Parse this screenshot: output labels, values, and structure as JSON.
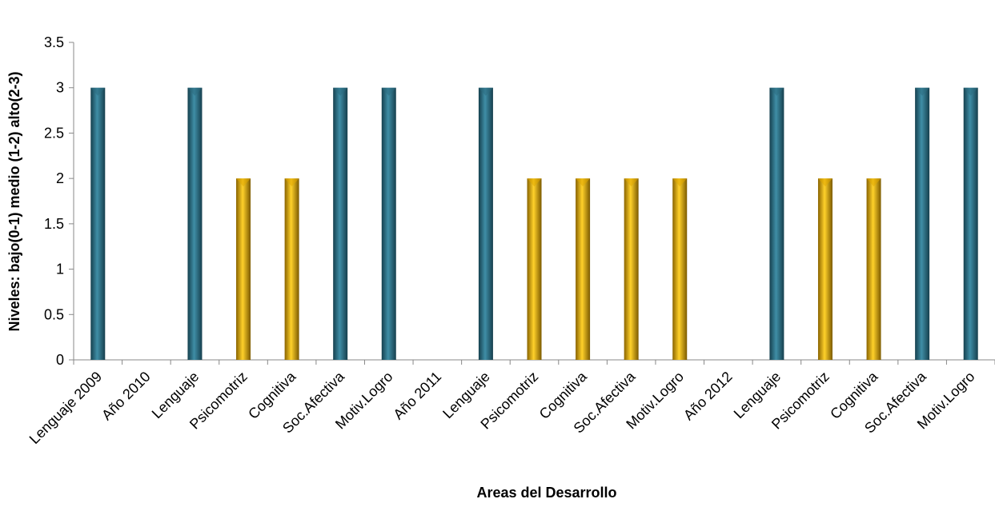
{
  "chart_data": {
    "type": "bar",
    "title": "",
    "xlabel": "Areas del Desarrollo",
    "ylabel": "Niveles: bajo(0-1) medio (1-2) alto(2-3)",
    "ylim": [
      0,
      3.5
    ],
    "yticks": [
      "0",
      "0.5",
      "1",
      "1.5",
      "2",
      "2.5",
      "3",
      "3.5"
    ],
    "grid": false,
    "legend": "none",
    "categories": [
      "Lenguaje 2009",
      "Año 2010",
      "Lenguaje",
      "Psicomotriz",
      "Cognitiva",
      "Soc.Afectiva",
      "Motiv.Logro",
      "Año 2011",
      "Lenguaje",
      "Psicomotriz",
      "Cognitiva",
      "Soc.Afectiva",
      "Motiv.Logro",
      "Año 2012",
      "Lenguaje",
      "Psicomotriz",
      "Cognitiva",
      "Soc.Afectiva",
      "Motiv.Logro"
    ],
    "values": [
      3,
      null,
      3,
      2,
      2,
      3,
      3,
      null,
      3,
      2,
      2,
      2,
      2,
      null,
      3,
      2,
      2,
      3,
      3
    ],
    "colors": {
      "high": "#2b6b80",
      "medium": "#e0a800"
    }
  }
}
